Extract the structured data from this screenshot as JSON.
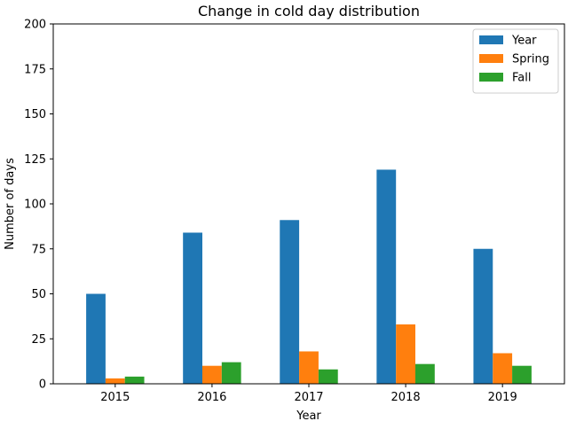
{
  "chart_data": {
    "type": "bar",
    "title": "Change in cold day distribution",
    "xlabel": "Year",
    "ylabel": "Number of days",
    "categories": [
      "2015",
      "2016",
      "2017",
      "2018",
      "2019"
    ],
    "series": [
      {
        "name": "Year",
        "color": "#1f77b4",
        "values": [
          50,
          84,
          91,
          119,
          75
        ]
      },
      {
        "name": "Spring",
        "color": "#ff7f0e",
        "values": [
          3,
          10,
          18,
          33,
          17
        ]
      },
      {
        "name": "Fall",
        "color": "#2ca02c",
        "values": [
          4,
          12,
          8,
          11,
          10
        ]
      }
    ],
    "ylim": [
      0,
      200
    ],
    "yticks": [
      0,
      25,
      50,
      75,
      100,
      125,
      150,
      175,
      200
    ],
    "grid": false,
    "legend_position": "top-right"
  }
}
